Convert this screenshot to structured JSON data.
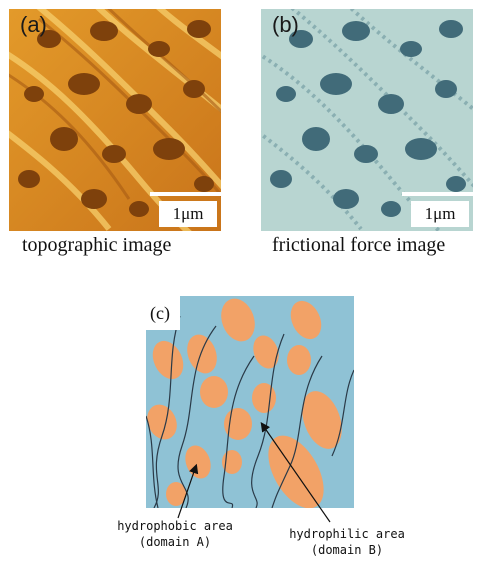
{
  "panels": {
    "a": {
      "label": "(a)",
      "scale": "1μm",
      "caption": "topographic image"
    },
    "b": {
      "label": "(b)",
      "scale": "1μm",
      "caption": "frictional force image"
    },
    "c": {
      "label": "(c)"
    }
  },
  "annotations": {
    "hydrophobic": {
      "line1": "hydrophobic area",
      "line2": "(domain A)"
    },
    "hydrophilic": {
      "line1": "hydrophilic area",
      "line2": "(domain B)"
    }
  },
  "colors": {
    "topo_bg": "#d98a1c",
    "topo_hole": "#8a4a0e",
    "topo_ridge": "#f6c861",
    "friction_bg": "#b9d6d2",
    "friction_domain": "#3f6a78",
    "schematic_bg": "#8cc0d4",
    "schematic_domain": "#f2a064",
    "schematic_line": "#2a3a48"
  }
}
